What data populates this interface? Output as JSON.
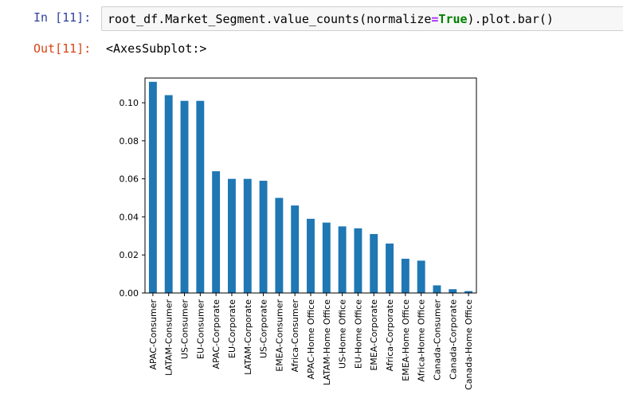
{
  "input_cell": {
    "prompt": "In [11]:",
    "code_before_eq": "root_df.Market_Segment.value_counts(normalize",
    "code_eq": "=",
    "code_kw": "True",
    "code_after": ").plot.bar()"
  },
  "output_cell": {
    "prompt": "Out[11]:",
    "text": "<AxesSubplot:>"
  },
  "colors": {
    "bar": "#1f77b4",
    "in_prompt": "#303f9f",
    "out_prompt": "#d84315"
  },
  "chart_data": {
    "type": "bar",
    "title": "",
    "xlabel": "",
    "ylabel": "",
    "ylim": [
      0,
      0.113
    ],
    "yticks": [
      0.0,
      0.02,
      0.04,
      0.06,
      0.08,
      0.1
    ],
    "ytick_labels": [
      "0.00",
      "0.02",
      "0.04",
      "0.06",
      "0.08",
      "0.10"
    ],
    "categories": [
      "APAC-Consumer",
      "LATAM-Consumer",
      "US-Consumer",
      "EU-Consumer",
      "APAC-Corporate",
      "EU-Corporate",
      "LATAM-Corporate",
      "US-Corporate",
      "EMEA-Consumer",
      "Africa-Consumer",
      "APAC-Home Office",
      "LATAM-Home Office",
      "US-Home Office",
      "EU-Home Office",
      "EMEA-Corporate",
      "Africa-Corporate",
      "EMEA-Home Office",
      "Africa-Home Office",
      "Canada-Consumer",
      "Canada-Corporate",
      "Canada-Home Office"
    ],
    "values": [
      0.111,
      0.104,
      0.101,
      0.101,
      0.064,
      0.06,
      0.06,
      0.059,
      0.05,
      0.046,
      0.039,
      0.037,
      0.035,
      0.034,
      0.031,
      0.026,
      0.018,
      0.017,
      0.004,
      0.002,
      0.001
    ],
    "grid": false,
    "legend": false
  }
}
